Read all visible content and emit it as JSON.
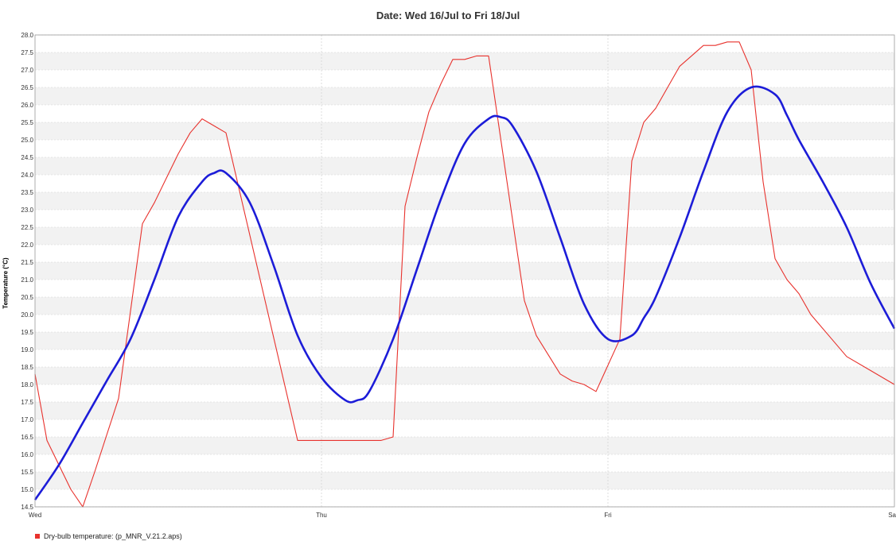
{
  "chart_data": {
    "type": "line",
    "title": "Date: Wed 16/Jul to Fri 18/Jul",
    "xlabel": "",
    "ylabel": "Temperature (°C)",
    "ylim": [
      14.5,
      28.0
    ],
    "xlim": [
      0,
      72
    ],
    "x_ticks": [
      {
        "x": 0,
        "label": "Wed"
      },
      {
        "x": 24,
        "label": "Thu"
      },
      {
        "x": 48,
        "label": "Fri"
      },
      {
        "x": 72,
        "label": "Sa"
      }
    ],
    "y_ticks": [
      "14.5",
      "15.0",
      "15.5",
      "16.0",
      "16.5",
      "17.0",
      "17.5",
      "18.0",
      "18.5",
      "19.0",
      "19.5",
      "20.0",
      "20.5",
      "21.0",
      "21.5",
      "22.0",
      "22.5",
      "23.0",
      "23.5",
      "24.0",
      "24.5",
      "25.0",
      "25.5",
      "26.0",
      "26.5",
      "27.0",
      "27.5",
      "28.0"
    ],
    "grid": true,
    "legend_position": "bottom-left",
    "series": [
      {
        "name": "Dry-bulb temperature:  (p_MNR_V.21.2.aps)",
        "color": "#e8322d",
        "smooth": false,
        "x": [
          0,
          1,
          3,
          4,
          5,
          7,
          9,
          10,
          11,
          12,
          13,
          14,
          15,
          16,
          19,
          22,
          24,
          25,
          27,
          28,
          29,
          30,
          31,
          32,
          33,
          34,
          35,
          36,
          37,
          38,
          41,
          42,
          44,
          45,
          46,
          47,
          49,
          50,
          51,
          52,
          54,
          55,
          56,
          57,
          58,
          59,
          60,
          61,
          62,
          63,
          64,
          65,
          67,
          68,
          70,
          72
        ],
        "values": [
          18.3,
          16.4,
          15.0,
          14.5,
          15.5,
          17.6,
          22.6,
          23.2,
          23.9,
          24.6,
          25.2,
          25.6,
          25.4,
          25.2,
          20.8,
          16.4,
          16.4,
          16.4,
          16.4,
          16.4,
          16.4,
          16.5,
          23.1,
          24.5,
          25.8,
          26.6,
          27.3,
          27.3,
          27.4,
          27.4,
          20.4,
          19.4,
          18.3,
          18.1,
          18.0,
          17.8,
          19.3,
          24.4,
          25.5,
          25.9,
          27.1,
          27.4,
          27.7,
          27.7,
          27.8,
          27.8,
          27.0,
          23.8,
          21.6,
          21.0,
          20.6,
          20.0,
          19.2,
          18.8,
          18.4,
          18.0
        ]
      },
      {
        "name": "",
        "color": "#1c1cd8",
        "smooth": true,
        "x": [
          0,
          2,
          4,
          6,
          8,
          10,
          12,
          14,
          15,
          16,
          18,
          20,
          22,
          24,
          26,
          27,
          28,
          30,
          32,
          34,
          36,
          38,
          39,
          40,
          42,
          44,
          46,
          48,
          50,
          51,
          52,
          54,
          56,
          58,
          60,
          62,
          63,
          64,
          66,
          68,
          70,
          72
        ],
        "values": [
          14.7,
          15.7,
          16.9,
          18.1,
          19.3,
          21.0,
          22.8,
          23.8,
          24.05,
          24.05,
          23.2,
          21.4,
          19.4,
          18.2,
          17.55,
          17.55,
          17.8,
          19.3,
          21.3,
          23.3,
          24.9,
          25.6,
          25.65,
          25.4,
          24.1,
          22.2,
          20.3,
          19.3,
          19.4,
          19.9,
          20.5,
          22.2,
          24.1,
          25.8,
          26.5,
          26.3,
          25.7,
          25.0,
          23.8,
          22.5,
          20.9,
          19.6
        ]
      }
    ]
  }
}
